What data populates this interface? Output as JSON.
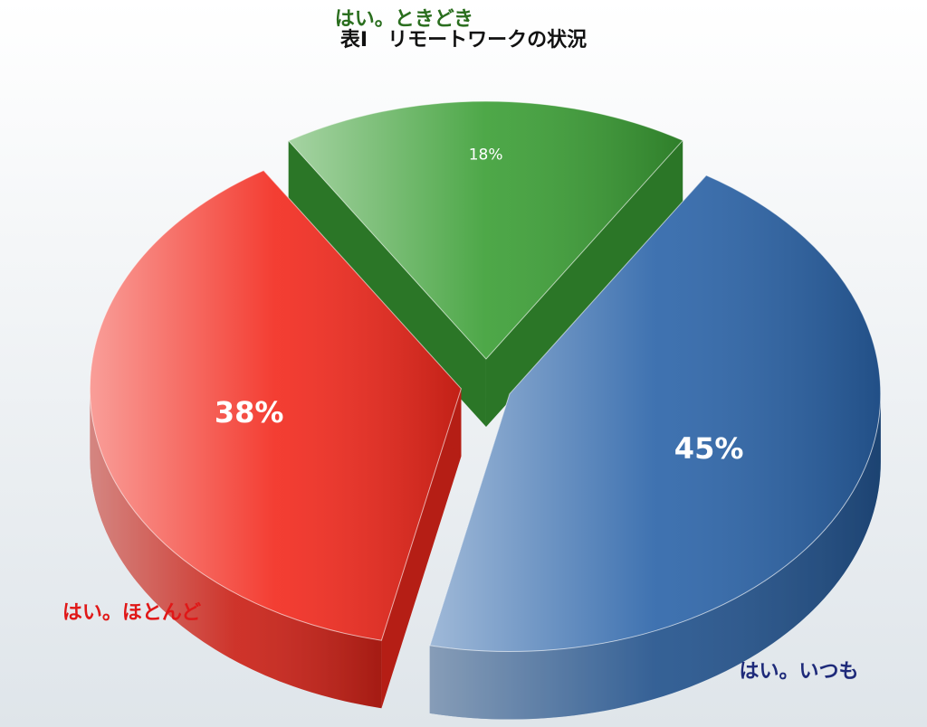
{
  "chart_data": {
    "type": "pie",
    "title": "表I　リモートワークの状況",
    "categories": [
      "はい。いつも",
      "はい。ほとんど",
      "はい。ときどき"
    ],
    "values": [
      45,
      38,
      18
    ],
    "value_labels": [
      "45%",
      "38%",
      "18%"
    ],
    "colors": [
      "#2a63a8",
      "#f2281c",
      "#3a9e34"
    ],
    "label_colors": [
      "#1e2a7a",
      "#e01818",
      "#2a6e1e"
    ]
  }
}
